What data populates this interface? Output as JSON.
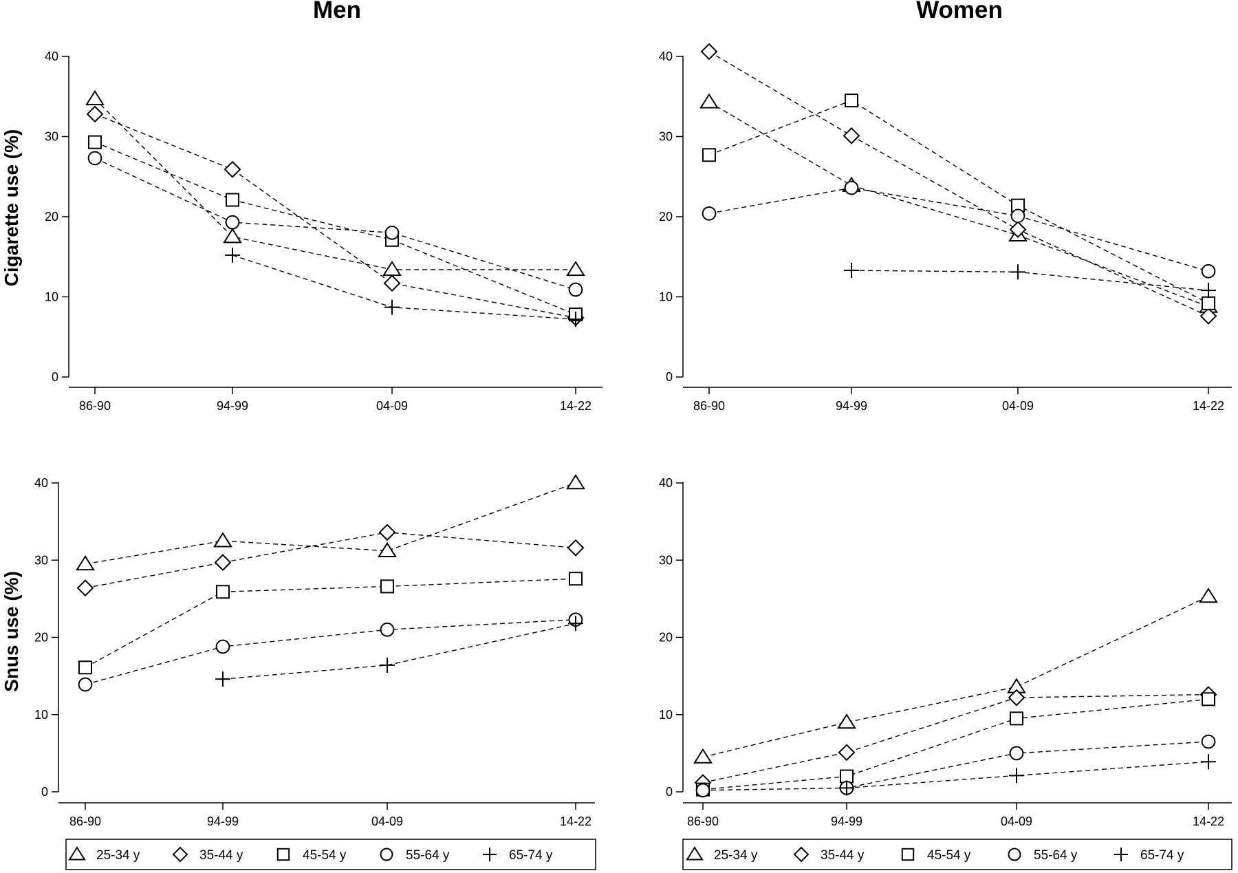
{
  "figure": {
    "column_titles": [
      "Men",
      "Women"
    ],
    "row_labels": [
      "Cigarette use (%)",
      "Snus use (%)"
    ]
  },
  "legend": {
    "entries": [
      {
        "name": "25-34 y",
        "icon": "triangle-marker-icon"
      },
      {
        "name": "35-44 y",
        "icon": "diamond-marker-icon"
      },
      {
        "name": "45-54 y",
        "icon": "square-marker-icon"
      },
      {
        "name": "55-64 y",
        "icon": "circle-marker-icon"
      },
      {
        "name": "65-74 y",
        "icon": "plus-marker-icon"
      }
    ]
  },
  "chart_data": [
    {
      "type": "line",
      "id": "men-cigarette",
      "title": "Men",
      "ylabel": "Cigarette use (%)",
      "categories": [
        "86-90",
        "94-99",
        "04-09",
        "14-22"
      ],
      "ylim": [
        0,
        40
      ],
      "yticks": [
        0,
        10,
        20,
        30,
        40
      ],
      "grid": false,
      "series": [
        {
          "name": "25-34 y",
          "marker": "triangle",
          "values": [
            34.7,
            17.5,
            13.4,
            13.4
          ]
        },
        {
          "name": "35-44 y",
          "marker": "diamond",
          "values": [
            32.8,
            25.9,
            11.7,
            7.4
          ]
        },
        {
          "name": "45-54 y",
          "marker": "square",
          "values": [
            29.3,
            22.1,
            17.1,
            7.8
          ]
        },
        {
          "name": "55-64 y",
          "marker": "circle",
          "values": [
            27.3,
            19.3,
            18.0,
            10.9
          ]
        },
        {
          "name": "65-74 y",
          "marker": "plus",
          "values": [
            null,
            15.2,
            8.7,
            7.2
          ]
        }
      ]
    },
    {
      "type": "line",
      "id": "women-cigarette",
      "title": "Women",
      "ylabel": "",
      "categories": [
        "86-90",
        "94-99",
        "04-09",
        "14-22"
      ],
      "ylim": [
        0,
        40
      ],
      "yticks": [
        0,
        10,
        20,
        30,
        40
      ],
      "grid": false,
      "series": [
        {
          "name": "25-34 y",
          "marker": "triangle",
          "values": [
            34.3,
            23.9,
            17.7,
            8.8
          ]
        },
        {
          "name": "35-44 y",
          "marker": "diamond",
          "values": [
            40.6,
            30.1,
            18.4,
            7.6
          ]
        },
        {
          "name": "45-54 y",
          "marker": "square",
          "values": [
            27.7,
            34.5,
            21.4,
            9.2
          ]
        },
        {
          "name": "55-64 y",
          "marker": "circle",
          "values": [
            20.4,
            23.6,
            20.1,
            13.2
          ]
        },
        {
          "name": "65-74 y",
          "marker": "plus",
          "values": [
            null,
            13.3,
            13.1,
            10.8
          ]
        }
      ]
    },
    {
      "type": "line",
      "id": "men-snus",
      "title": "",
      "ylabel": "Snus use (%)",
      "categories": [
        "86-90",
        "94-99",
        "04-09",
        "14-22"
      ],
      "ylim": [
        0,
        40
      ],
      "yticks": [
        0,
        10,
        20,
        30,
        40
      ],
      "grid": false,
      "series": [
        {
          "name": "25-34 y",
          "marker": "triangle",
          "values": [
            29.5,
            32.5,
            31.2,
            40.0
          ]
        },
        {
          "name": "35-44 y",
          "marker": "diamond",
          "values": [
            26.4,
            29.7,
            33.6,
            31.6
          ]
        },
        {
          "name": "45-54 y",
          "marker": "square",
          "values": [
            16.1,
            25.9,
            26.6,
            27.6
          ]
        },
        {
          "name": "55-64 y",
          "marker": "circle",
          "values": [
            13.9,
            18.8,
            21.0,
            22.3
          ]
        },
        {
          "name": "65-74 y",
          "marker": "plus",
          "values": [
            null,
            14.6,
            16.4,
            21.8
          ]
        }
      ]
    },
    {
      "type": "line",
      "id": "women-snus",
      "title": "",
      "ylabel": "",
      "categories": [
        "86-90",
        "94-99",
        "04-09",
        "14-22"
      ],
      "ylim": [
        0,
        40
      ],
      "yticks": [
        0,
        10,
        20,
        30,
        40
      ],
      "grid": false,
      "series": [
        {
          "name": "25-34 y",
          "marker": "triangle",
          "values": [
            4.5,
            9.0,
            13.6,
            25.3
          ]
        },
        {
          "name": "35-44 y",
          "marker": "diamond",
          "values": [
            1.2,
            5.1,
            12.2,
            12.6
          ]
        },
        {
          "name": "45-54 y",
          "marker": "square",
          "values": [
            0.3,
            2.0,
            9.5,
            12.0
          ]
        },
        {
          "name": "55-64 y",
          "marker": "circle",
          "values": [
            0.2,
            0.5,
            5.0,
            6.5
          ]
        },
        {
          "name": "65-74 y",
          "marker": "plus",
          "values": [
            null,
            0.5,
            2.1,
            3.9
          ]
        }
      ]
    }
  ]
}
